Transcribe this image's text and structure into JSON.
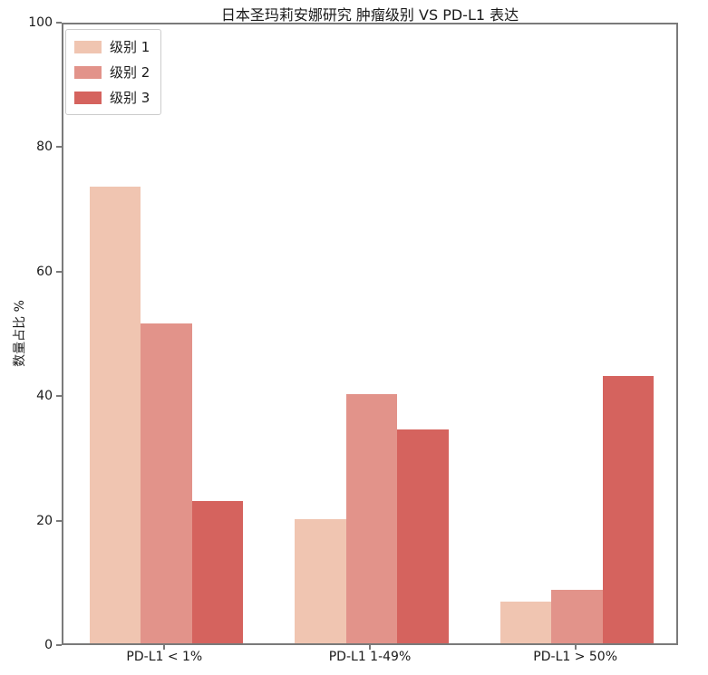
{
  "chart_data": {
    "type": "bar",
    "title": "日本圣玛莉安娜研究 肿瘤级别 VS PD-L1 表达",
    "ylabel": "数量占比 %",
    "xlabel": "",
    "categories": [
      "PD-L1 < 1%",
      "PD-L1 1-49%",
      "PD-L1 > 50%"
    ],
    "series": [
      {
        "name": "级别 1",
        "color": "#f0c5b1",
        "values": [
          73.3,
          20.0,
          6.7
        ]
      },
      {
        "name": "级别 2",
        "color": "#e2938a",
        "values": [
          51.4,
          40.0,
          8.6
        ]
      },
      {
        "name": "级别 3",
        "color": "#d5635e",
        "values": [
          22.9,
          34.3,
          42.9
        ]
      }
    ],
    "ylim": [
      0,
      100
    ],
    "yticks": [
      0,
      20,
      40,
      60,
      80,
      100
    ],
    "grid": false,
    "legend_position": "upper-left",
    "colors": {
      "spine": "#7a7a7a",
      "text": "#1a1a1a",
      "background": "#ffffff"
    }
  }
}
